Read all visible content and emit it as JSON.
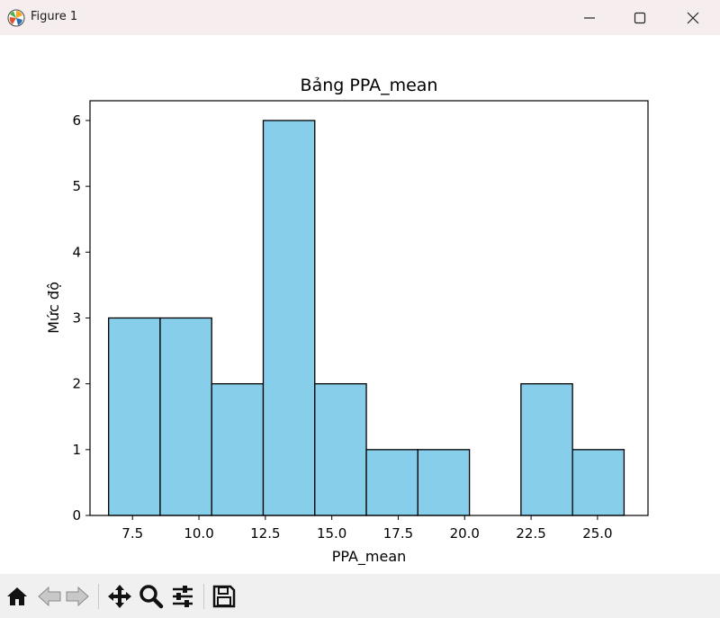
{
  "window": {
    "title": "Figure 1",
    "icons": [
      "matplotlib-logo-icon",
      "minimize-icon",
      "maximize-icon",
      "close-icon"
    ]
  },
  "toolbar": {
    "tools": [
      "home-icon",
      "back-arrow-icon",
      "forward-arrow-icon",
      "pan-icon",
      "zoom-icon",
      "subplots-config-icon",
      "save-icon"
    ]
  },
  "chart_data": {
    "type": "bar",
    "title": "Bảng PPA_mean",
    "xlabel": "PPA_mean",
    "ylabel": "Mức độ",
    "bin_edges": [
      6.6,
      8.54,
      10.48,
      12.42,
      14.36,
      16.3,
      18.24,
      20.18,
      22.12,
      24.06,
      26.0
    ],
    "values": [
      3,
      3,
      2,
      6,
      2,
      1,
      1,
      0,
      2,
      1
    ],
    "xlim": [
      5.9,
      26.9
    ],
    "ylim": [
      0,
      6.3
    ],
    "xticks": [
      7.5,
      10.0,
      12.5,
      15.0,
      17.5,
      20.0,
      22.5,
      25.0
    ],
    "xtick_labels": [
      "7.5",
      "10.0",
      "12.5",
      "15.0",
      "17.5",
      "20.0",
      "22.5",
      "25.0"
    ],
    "yticks": [
      0,
      1,
      2,
      3,
      4,
      5,
      6
    ],
    "ytick_labels": [
      "0",
      "1",
      "2",
      "3",
      "4",
      "5",
      "6"
    ],
    "bar_color": "#87ceeb",
    "edge_color": "#000000",
    "grid": false,
    "legend": "none"
  }
}
